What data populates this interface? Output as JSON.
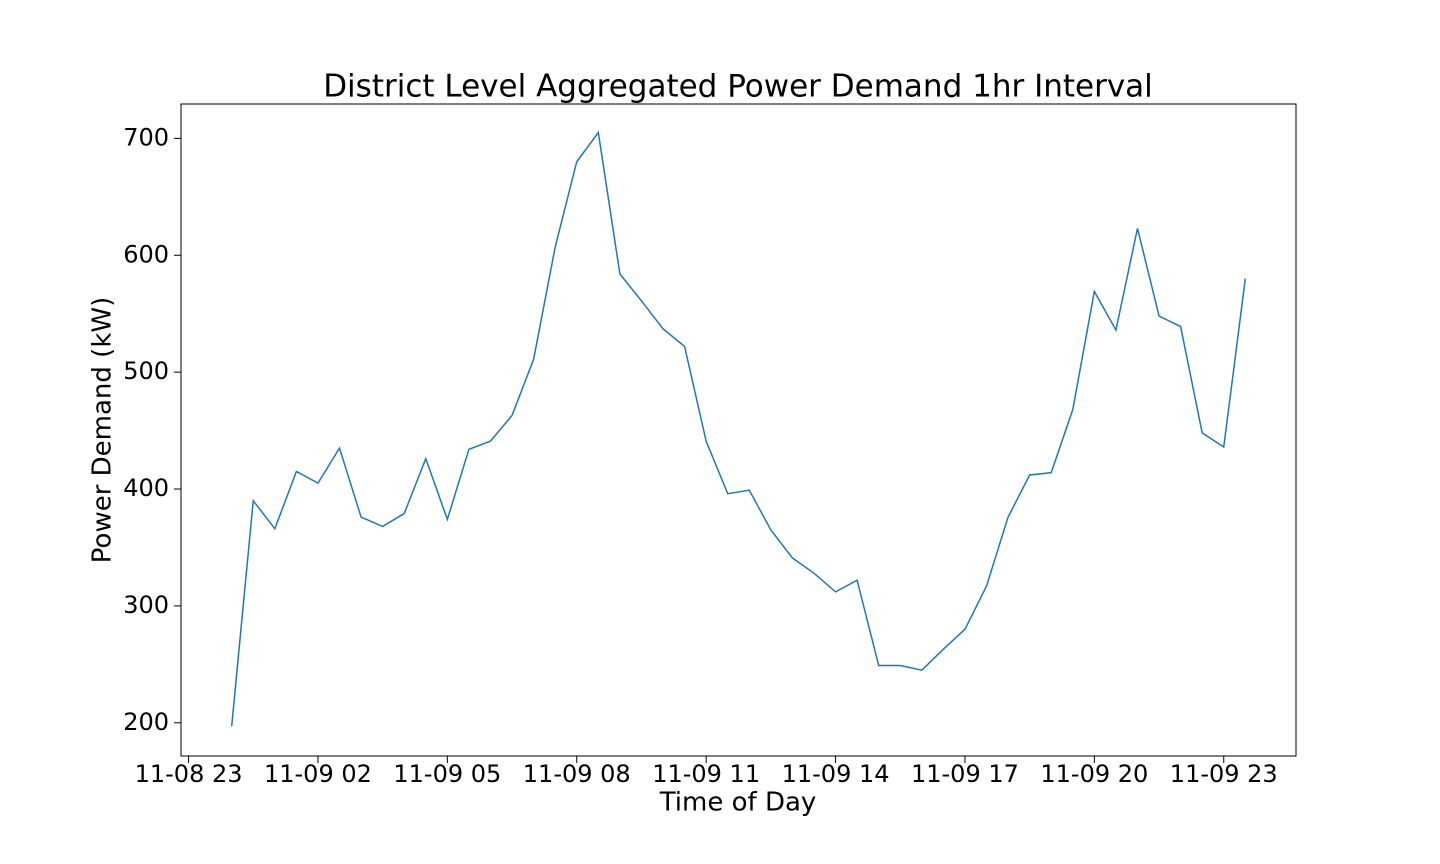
{
  "chart_data": {
    "type": "line",
    "title": "District Level Aggregated Power Demand 1hr Interval",
    "x_label": "Time of Day",
    "y_label": "Power Demand (kW)",
    "x": [
      0,
      0.5,
      1,
      1.5,
      2,
      2.5,
      3,
      3.5,
      4,
      4.5,
      5,
      5.5,
      6,
      6.5,
      7,
      7.5,
      8,
      8.5,
      9,
      9.5,
      10,
      10.5,
      11,
      11.5,
      12,
      12.5,
      13,
      13.5,
      14,
      14.5,
      15,
      15.5,
      16,
      16.5,
      17,
      17.5,
      18,
      18.5,
      19,
      19.5,
      20,
      20.5,
      21,
      21.5,
      22,
      22.5,
      23,
      23.5
    ],
    "series": [
      {
        "name": "Power Demand",
        "color": "#1f77b4",
        "values": [
          197,
          390,
          366,
          415,
          405,
          435,
          376,
          368,
          379,
          426,
          374,
          434,
          441,
          463,
          511,
          607,
          680,
          705,
          584,
          561,
          537,
          522,
          441,
          396,
          399,
          365,
          341,
          328,
          312,
          322,
          249,
          249,
          245,
          263,
          280,
          317,
          376,
          412,
          414,
          468,
          569,
          536,
          623,
          548,
          539,
          448,
          436,
          580
        ]
      }
    ],
    "xlim": [
      -1.175,
      24.675
    ],
    "xticks": [
      {
        "value": -1,
        "label": "11-08 23"
      },
      {
        "value": 2,
        "label": "11-09 02"
      },
      {
        "value": 5,
        "label": "11-09 05"
      },
      {
        "value": 8,
        "label": "11-09 08"
      },
      {
        "value": 11,
        "label": "11-09 11"
      },
      {
        "value": 14,
        "label": "11-09 14"
      },
      {
        "value": 17,
        "label": "11-09 17"
      },
      {
        "value": 20,
        "label": "11-09 20"
      },
      {
        "value": 23,
        "label": "11-09 23"
      }
    ],
    "ylim": [
      171.6,
      729.4
    ],
    "yticks": [
      200,
      300,
      400,
      500,
      600,
      700
    ],
    "grid": false
  }
}
